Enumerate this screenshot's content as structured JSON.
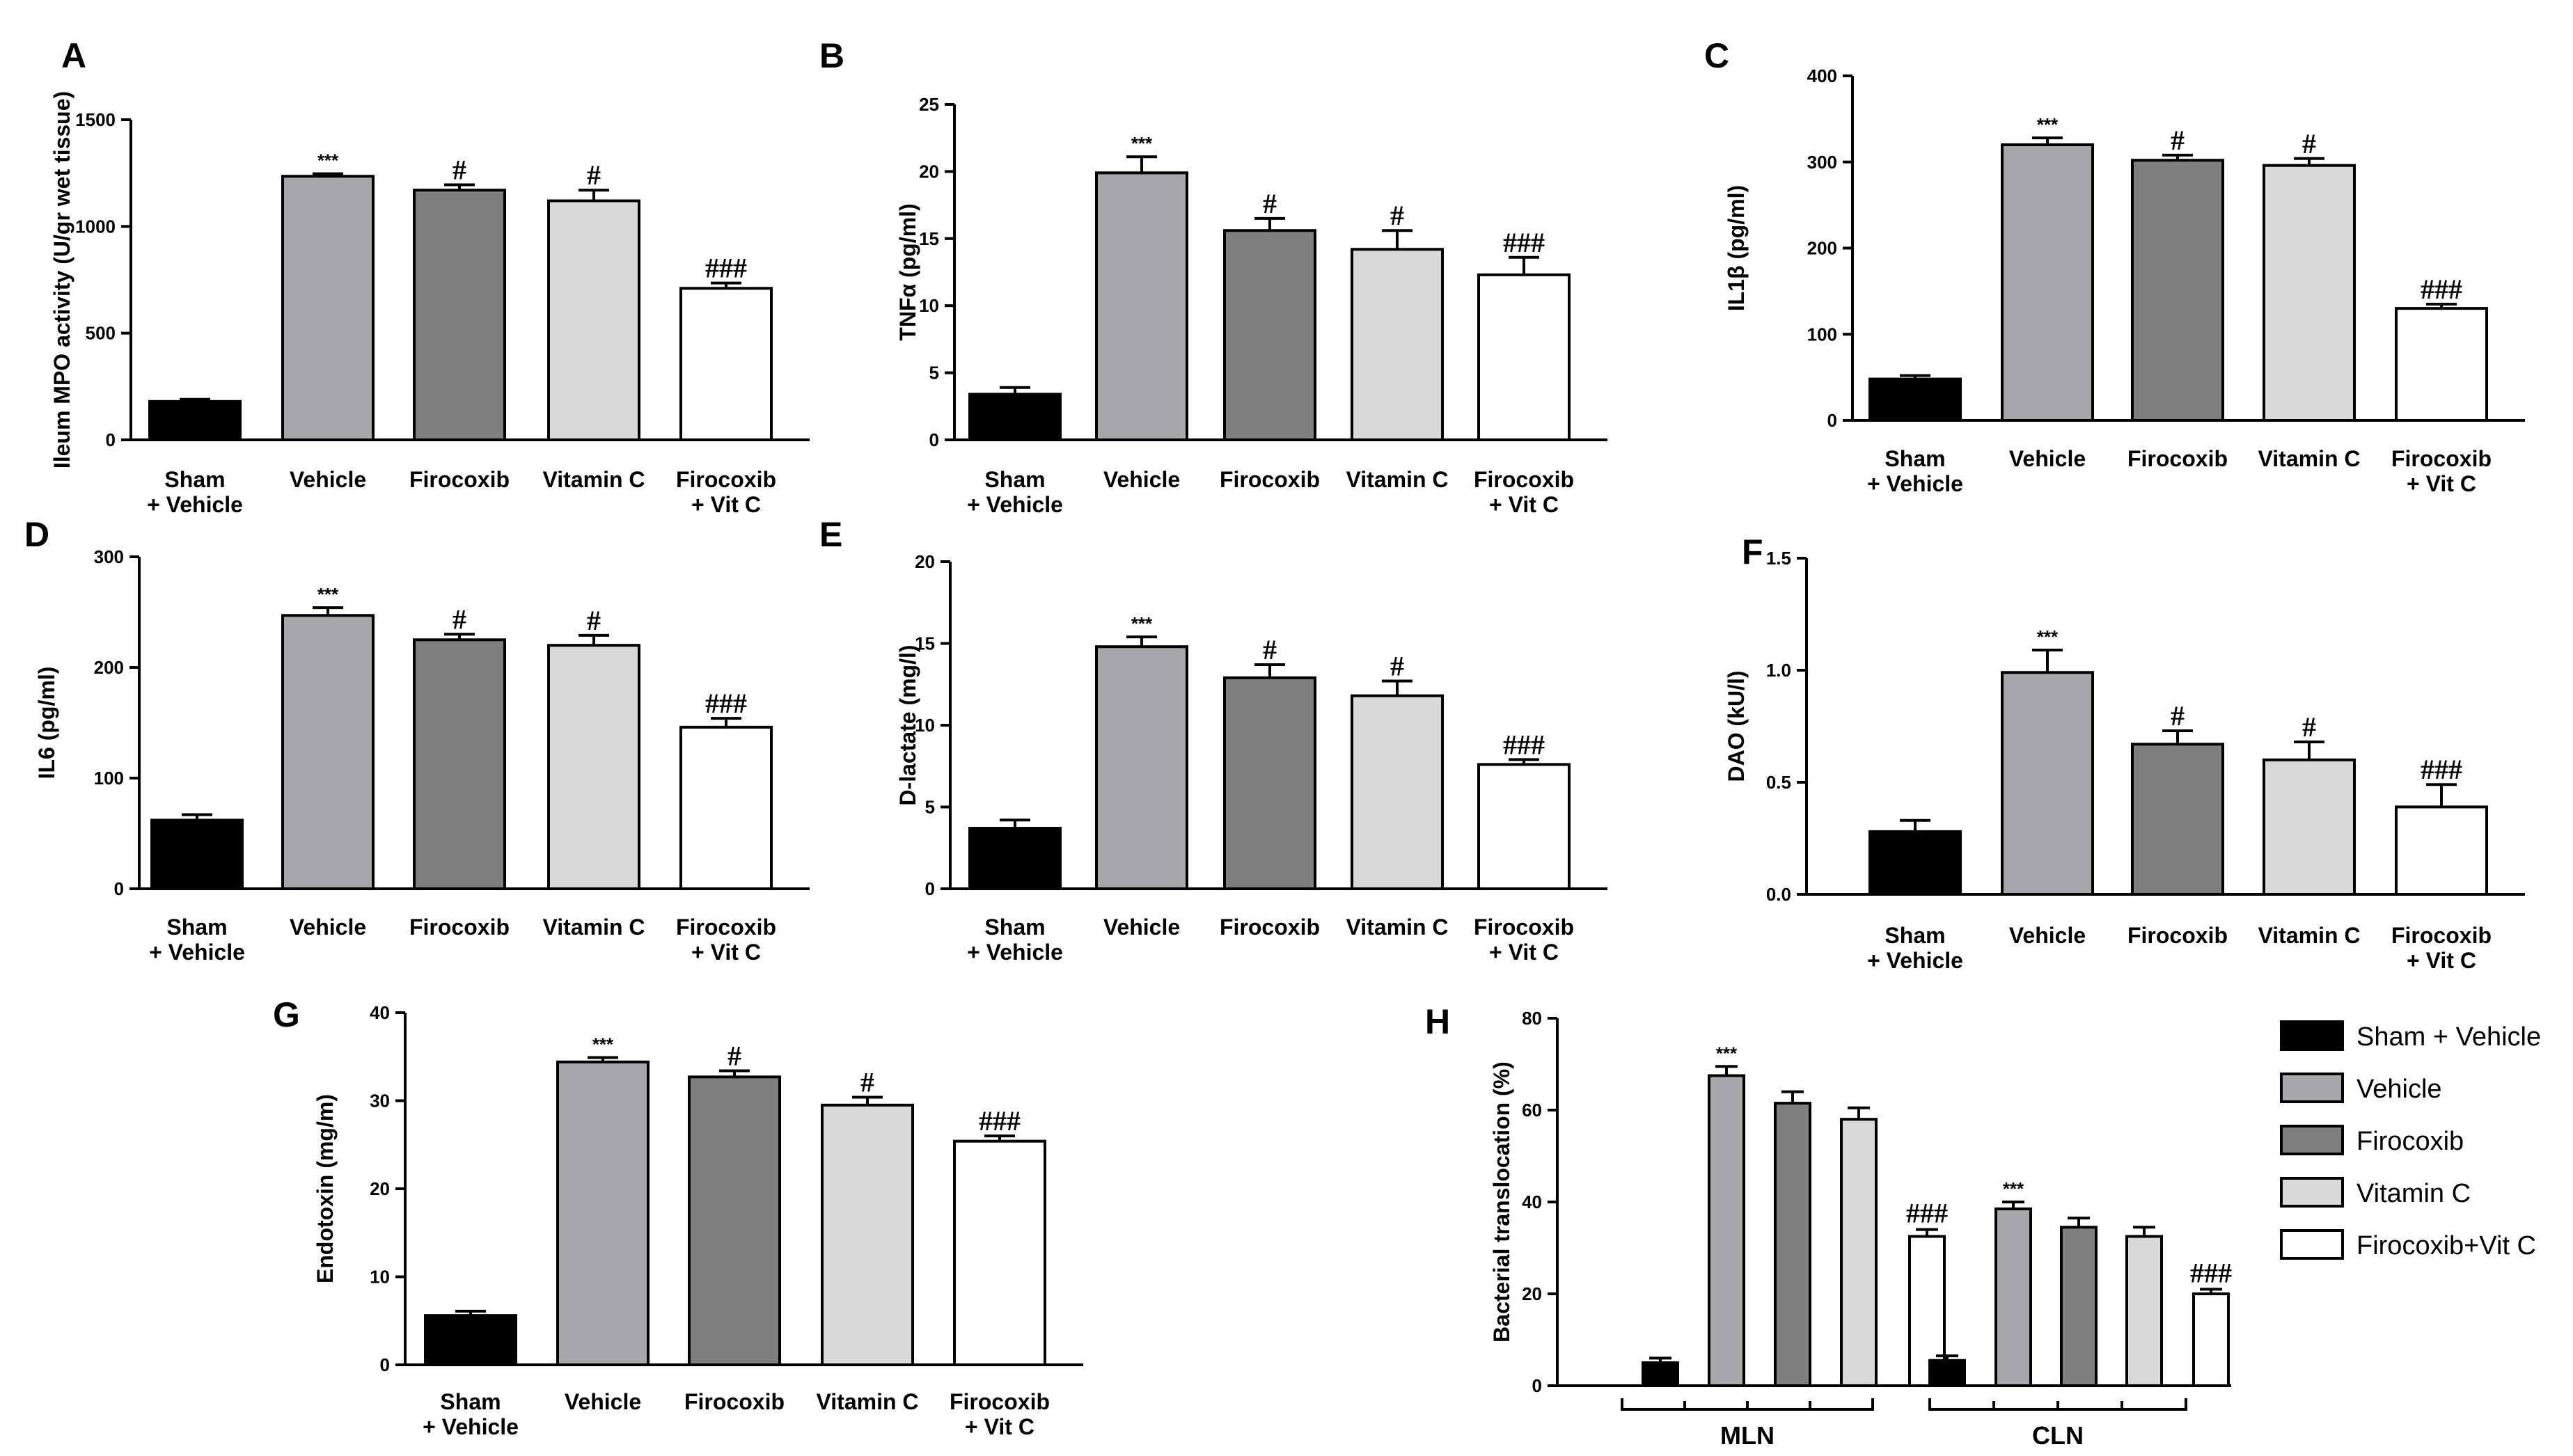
{
  "colors": {
    "Sham + Vehicle": "#000000",
    "Vehicle": "#a6a6ab",
    "Firocoxib": "#7f7f7f",
    "Vitamin C": "#d9d9d9",
    "Firocoxib + Vit C": "#ffffff"
  },
  "legend": [
    "Sham + Vehicle",
    "Vehicle",
    "Firocoxib",
    "Vitamin C",
    "Firocoxib+Vit C"
  ],
  "chart_data": [
    {
      "panel": "A",
      "type": "bar",
      "ylabel": "Ileum MPO activity (U/gr wet tissue)",
      "ylim": [
        0,
        1500
      ],
      "yticks": [
        0,
        500,
        1000,
        1500
      ],
      "categories": [
        "Sham\n+ Vehicle",
        "Vehicle",
        "Firocoxib",
        "Vitamin C",
        "Firocoxib\n+ Vit C"
      ],
      "values": [
        180,
        1235,
        1170,
        1120,
        710
      ],
      "errors": [
        10,
        12,
        25,
        50,
        25
      ],
      "annotations": [
        "",
        "***",
        "#",
        "#",
        "###"
      ]
    },
    {
      "panel": "B",
      "type": "bar",
      "ylabel": "TNFα (pg/ml)",
      "ylim": [
        0,
        25
      ],
      "yticks": [
        0,
        5,
        10,
        15,
        20,
        25
      ],
      "categories": [
        "Sham\n+ Vehicle",
        "Vehicle",
        "Firocoxib",
        "Vitamin C",
        "Firocoxib\n+ Vit C"
      ],
      "values": [
        3.4,
        19.9,
        15.6,
        14.2,
        12.3
      ],
      "errors": [
        0.5,
        1.2,
        0.9,
        1.4,
        1.3
      ],
      "annotations": [
        "",
        "***",
        "#",
        "#",
        "###"
      ]
    },
    {
      "panel": "C",
      "type": "bar",
      "ylabel": "IL1β (pg/ml)",
      "ylim": [
        0,
        400
      ],
      "yticks": [
        0,
        100,
        200,
        300,
        400
      ],
      "categories": [
        "Sham\n+ Vehicle",
        "Vehicle",
        "Firocoxib",
        "Vitamin C",
        "Firocoxib\n+ Vit C"
      ],
      "values": [
        48,
        320,
        302,
        296,
        130
      ],
      "errors": [
        4,
        8,
        6,
        8,
        5
      ],
      "annotations": [
        "",
        "***",
        "#",
        "#",
        "###"
      ]
    },
    {
      "panel": "D",
      "type": "bar",
      "ylabel": "IL6 (pg/ml)",
      "ylim": [
        0,
        300
      ],
      "yticks": [
        0,
        100,
        200,
        300
      ],
      "categories": [
        "Sham\n+ Vehicle",
        "Vehicle",
        "Firocoxib",
        "Vitamin C",
        "Firocoxib\n+ Vit C"
      ],
      "values": [
        62,
        247,
        225,
        220,
        146
      ],
      "errors": [
        5,
        7,
        5,
        9,
        8
      ],
      "annotations": [
        "",
        "***",
        "#",
        "#",
        "###"
      ]
    },
    {
      "panel": "E",
      "type": "bar",
      "ylabel": "D-lactate (mg/l)",
      "ylim": [
        0,
        20
      ],
      "yticks": [
        0,
        5,
        10,
        15,
        20
      ],
      "categories": [
        "Sham\n+ Vehicle",
        "Vehicle",
        "Firocoxib",
        "Vitamin C",
        "Firocoxib\n+ Vit C"
      ],
      "values": [
        3.7,
        14.8,
        12.9,
        11.8,
        7.6
      ],
      "errors": [
        0.5,
        0.6,
        0.8,
        0.9,
        0.3
      ],
      "annotations": [
        "",
        "***",
        "#",
        "#",
        "###"
      ]
    },
    {
      "panel": "F",
      "type": "bar",
      "ylabel": "DAO (kU/l)",
      "ylim": [
        0,
        1.5
      ],
      "yticks": [
        "0.0",
        "0.5",
        "1.0",
        "1.5"
      ],
      "categories": [
        "Sham\n+ Vehicle",
        "Vehicle",
        "Firocoxib",
        "Vitamin C",
        "Firocoxib\n+ Vit C"
      ],
      "values": [
        0.28,
        0.99,
        0.67,
        0.6,
        0.39
      ],
      "errors": [
        0.05,
        0.1,
        0.06,
        0.08,
        0.1
      ],
      "annotations": [
        "",
        "***",
        "#",
        "#",
        "###"
      ]
    },
    {
      "panel": "G",
      "type": "bar",
      "ylabel": "Endotoxin (mg/m)",
      "ylim": [
        0,
        40
      ],
      "yticks": [
        0,
        10,
        20,
        30,
        40
      ],
      "categories": [
        "Sham\n+ Vehicle",
        "Vehicle",
        "Firocoxib",
        "Vitamin C",
        "Firocoxib\n+ Vit C"
      ],
      "values": [
        5.6,
        34.4,
        32.7,
        29.5,
        25.4
      ],
      "errors": [
        0.5,
        0.5,
        0.7,
        0.9,
        0.6
      ],
      "annotations": [
        "",
        "***",
        "#",
        "#",
        "###"
      ]
    },
    {
      "panel": "H",
      "type": "bar",
      "ylabel": "Bacterial translocation (%)",
      "ylim": [
        0,
        80
      ],
      "yticks": [
        0,
        20,
        40,
        60,
        80
      ],
      "groups": [
        "MLN",
        "CLN"
      ],
      "series": [
        {
          "name": "Sham + Vehicle",
          "values": [
            5,
            5.5
          ],
          "errors": [
            1,
            1
          ]
        },
        {
          "name": "Vehicle",
          "values": [
            67.5,
            38.5
          ],
          "errors": [
            2,
            1.5
          ]
        },
        {
          "name": "Firocoxib",
          "values": [
            61.5,
            34.5
          ],
          "errors": [
            2.5,
            2
          ]
        },
        {
          "name": "Vitamin C",
          "values": [
            58,
            32.5
          ],
          "errors": [
            2.5,
            2
          ]
        },
        {
          "name": "Firocoxib+Vit C",
          "values": [
            32.5,
            20
          ],
          "errors": [
            1.5,
            1
          ]
        }
      ],
      "annotations": [
        [
          "",
          "***",
          "",
          "",
          "###"
        ],
        [
          "",
          "***",
          "",
          "",
          "###"
        ]
      ]
    }
  ]
}
